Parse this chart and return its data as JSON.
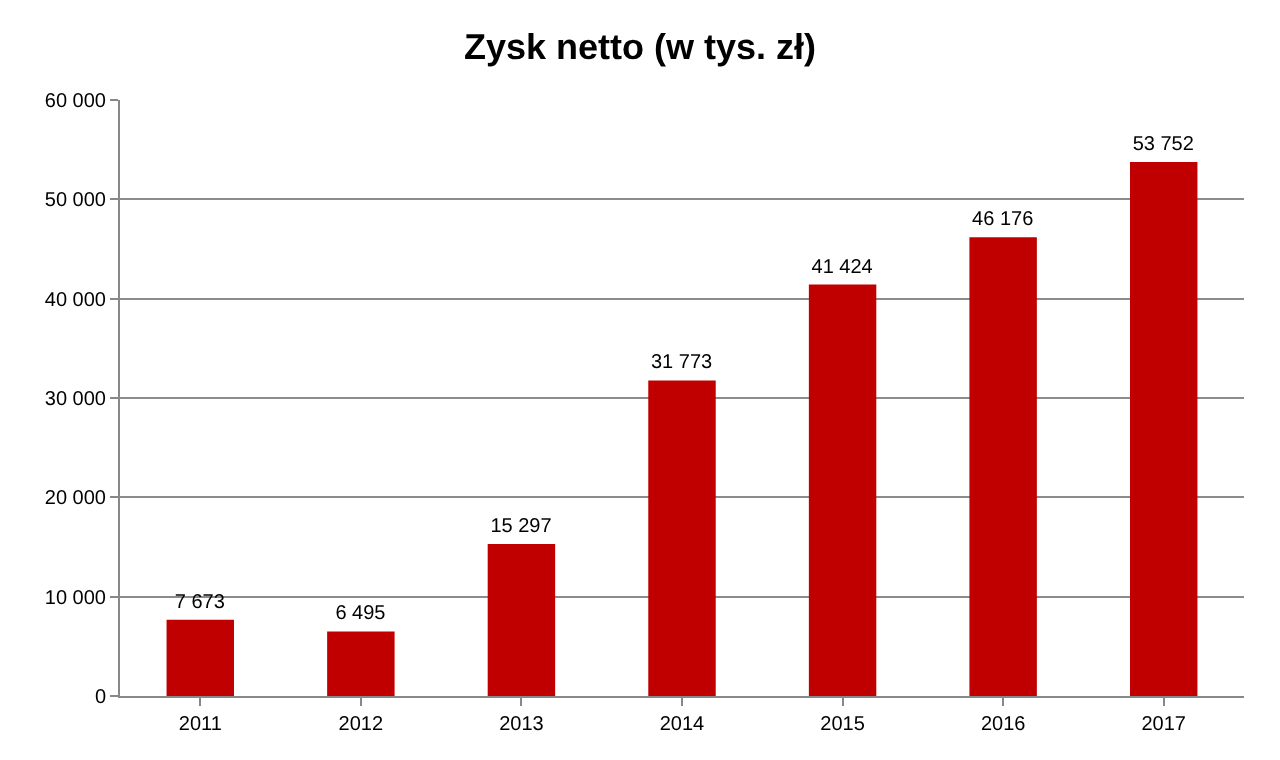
{
  "chart_data": {
    "type": "bar",
    "title": "Zysk netto (w tys. zł)",
    "categories": [
      "2011",
      "2012",
      "2013",
      "2014",
      "2015",
      "2016",
      "2017"
    ],
    "values": [
      7673,
      6495,
      15297,
      31773,
      41424,
      46176,
      53752
    ],
    "value_labels": [
      "7 673",
      "6 495",
      "15 297",
      "31 773",
      "41 424",
      "46 176",
      "53 752"
    ],
    "color": "#c00000",
    "ylim": [
      0,
      60000
    ],
    "yticks": [
      {
        "value": 0,
        "label": "0"
      },
      {
        "value": 10000,
        "label": "10 000"
      },
      {
        "value": 20000,
        "label": "20 000"
      },
      {
        "value": 30000,
        "label": "30 000"
      },
      {
        "value": 40000,
        "label": "40 000"
      },
      {
        "value": 50000,
        "label": "50 000"
      },
      {
        "value": 60000,
        "label": "60 000"
      }
    ],
    "grid": "y"
  }
}
